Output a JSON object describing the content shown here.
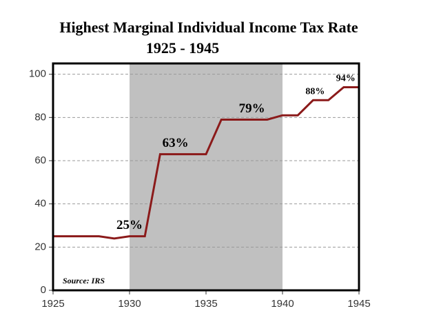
{
  "chart_data": {
    "type": "line",
    "title": "Highest Marginal Individual Income Tax Rate",
    "subtitle": "1925 - 1945",
    "source": "Source: IRS",
    "x": [
      1925,
      1926,
      1927,
      1928,
      1929,
      1930,
      1931,
      1932,
      1933,
      1934,
      1935,
      1936,
      1937,
      1938,
      1939,
      1940,
      1941,
      1942,
      1943,
      1944,
      1945
    ],
    "series": [
      {
        "color": "#8b1a1a",
        "values": [
          25,
          25,
          25,
          25,
          24,
          25,
          25,
          63,
          63,
          63,
          63,
          79,
          79,
          79,
          79,
          81,
          81,
          88,
          88,
          94,
          94
        ],
        "value_labels": [
          null,
          null,
          null,
          null,
          null,
          "25%",
          null,
          null,
          "63%",
          null,
          null,
          null,
          null,
          "79%",
          null,
          null,
          null,
          "88%",
          null,
          "94%",
          null
        ]
      }
    ],
    "xlim": [
      1925,
      1945
    ],
    "xticks": [
      1925,
      1930,
      1935,
      1940,
      1945
    ],
    "ylim": [
      0,
      105
    ],
    "yticks": [
      0,
      20,
      40,
      60,
      80,
      100
    ],
    "grid": true,
    "shade": [
      1930,
      1940
    ]
  }
}
